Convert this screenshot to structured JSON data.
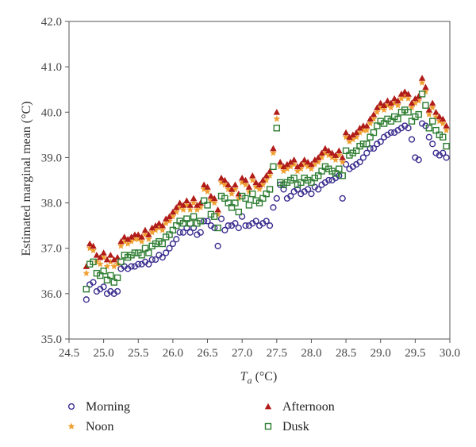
{
  "chart_data": {
    "type": "scatter",
    "title": "",
    "xlabel": "T",
    "xlabel_sub": "a",
    "xlabel_unit": " (°C)",
    "ylabel": "Estimated marginal mean (°C)",
    "xlim": [
      24.5,
      30.0
    ],
    "ylim": [
      35.0,
      42.0
    ],
    "xticks": [
      24.5,
      25.0,
      25.5,
      26.0,
      26.5,
      27.0,
      27.5,
      28.0,
      28.5,
      29.0,
      29.5,
      30.0
    ],
    "yticks": [
      35.0,
      36.0,
      37.0,
      38.0,
      39.0,
      40.0,
      41.0,
      42.0
    ],
    "grid": false,
    "legend_position": "bottom",
    "x_step": 0.05,
    "series": [
      {
        "name": "Morning",
        "marker": "circle",
        "color": "#3b2e8f",
        "x": [
          24.75,
          24.8,
          24.85,
          24.9,
          24.95,
          25.0,
          25.05,
          25.1,
          25.15,
          25.2,
          25.25,
          25.3,
          25.35,
          25.4,
          25.45,
          25.5,
          25.55,
          25.6,
          25.65,
          25.7,
          25.75,
          25.8,
          25.85,
          25.9,
          25.95,
          26.0,
          26.05,
          26.1,
          26.15,
          26.2,
          26.25,
          26.3,
          26.35,
          26.4,
          26.45,
          26.5,
          26.55,
          26.6,
          26.65,
          26.7,
          26.75,
          26.8,
          26.85,
          26.9,
          26.95,
          27.0,
          27.05,
          27.1,
          27.15,
          27.2,
          27.25,
          27.3,
          27.35,
          27.4,
          27.45,
          27.5,
          27.55,
          27.6,
          27.65,
          27.7,
          27.75,
          27.8,
          27.85,
          27.9,
          27.95,
          28.0,
          28.05,
          28.1,
          28.15,
          28.2,
          28.25,
          28.3,
          28.35,
          28.4,
          28.45,
          28.5,
          28.55,
          28.6,
          28.65,
          28.7,
          28.75,
          28.8,
          28.85,
          28.9,
          28.95,
          29.0,
          29.05,
          29.1,
          29.15,
          29.2,
          29.25,
          29.3,
          29.35,
          29.4,
          29.45,
          29.5,
          29.55,
          29.6,
          29.65,
          29.7,
          29.75,
          29.8,
          29.85,
          29.9,
          29.95
        ],
        "values": [
          35.87,
          36.2,
          36.25,
          36.05,
          36.1,
          36.15,
          36.0,
          36.05,
          36.0,
          36.05,
          36.55,
          36.6,
          36.55,
          36.6,
          36.6,
          36.65,
          36.65,
          36.7,
          36.65,
          36.75,
          36.75,
          36.85,
          36.8,
          36.9,
          37.0,
          37.1,
          37.2,
          37.35,
          37.35,
          37.45,
          37.35,
          37.45,
          37.3,
          37.35,
          37.6,
          37.6,
          37.5,
          37.45,
          37.05,
          37.65,
          37.4,
          37.5,
          37.5,
          37.55,
          37.45,
          37.7,
          37.5,
          37.5,
          37.55,
          37.6,
          37.5,
          37.55,
          37.6,
          37.5,
          37.9,
          38.1,
          38.4,
          38.3,
          38.1,
          38.15,
          38.25,
          38.3,
          38.2,
          38.25,
          38.3,
          38.2,
          38.35,
          38.3,
          38.4,
          38.45,
          38.5,
          38.5,
          38.55,
          38.6,
          38.1,
          38.85,
          38.75,
          38.8,
          38.85,
          38.9,
          39.0,
          39.1,
          39.2,
          39.2,
          39.3,
          39.35,
          39.45,
          39.5,
          39.55,
          39.55,
          39.6,
          39.65,
          39.7,
          39.65,
          39.4,
          39.0,
          38.95,
          39.75,
          39.7,
          39.45,
          39.3,
          39.1,
          39.05,
          39.1,
          39.0
        ]
      },
      {
        "name": "Noon",
        "marker": "star",
        "color": "#f0a030",
        "x": [
          24.75,
          24.8,
          24.85,
          24.9,
          24.95,
          25.0,
          25.05,
          25.1,
          25.15,
          25.2,
          25.25,
          25.3,
          25.35,
          25.4,
          25.45,
          25.5,
          25.55,
          25.6,
          25.65,
          25.7,
          25.75,
          25.8,
          25.85,
          25.9,
          25.95,
          26.0,
          26.05,
          26.1,
          26.15,
          26.2,
          26.25,
          26.3,
          26.35,
          26.4,
          26.45,
          26.5,
          26.55,
          26.6,
          26.65,
          26.7,
          26.75,
          26.8,
          26.85,
          26.9,
          26.95,
          27.0,
          27.05,
          27.1,
          27.15,
          27.2,
          27.25,
          27.3,
          27.35,
          27.4,
          27.45,
          27.5,
          27.55,
          27.6,
          27.65,
          27.7,
          27.75,
          27.8,
          27.85,
          27.9,
          27.95,
          28.0,
          28.05,
          28.1,
          28.15,
          28.2,
          28.25,
          28.3,
          28.35,
          28.4,
          28.45,
          28.5,
          28.55,
          28.6,
          28.65,
          28.7,
          28.75,
          28.8,
          28.85,
          28.9,
          28.95,
          29.0,
          29.05,
          29.1,
          29.15,
          29.2,
          29.25,
          29.3,
          29.35,
          29.4,
          29.45,
          29.5,
          29.55,
          29.6,
          29.65,
          29.7,
          29.75,
          29.8,
          29.85,
          29.9,
          29.95
        ],
        "values": [
          36.45,
          37.0,
          36.95,
          36.7,
          36.65,
          36.8,
          36.6,
          36.7,
          36.6,
          36.65,
          37.05,
          37.15,
          37.1,
          37.15,
          37.2,
          37.2,
          37.15,
          37.3,
          37.2,
          37.35,
          37.4,
          37.45,
          37.4,
          37.55,
          37.6,
          37.7,
          37.8,
          37.9,
          37.85,
          37.95,
          37.85,
          38.0,
          37.85,
          37.9,
          38.3,
          38.25,
          38.05,
          38.0,
          37.75,
          38.45,
          38.4,
          38.3,
          38.2,
          38.3,
          38.1,
          38.45,
          38.4,
          38.25,
          38.5,
          38.35,
          38.3,
          38.4,
          38.5,
          38.6,
          39.1,
          39.85,
          38.8,
          38.7,
          38.75,
          38.8,
          38.85,
          38.7,
          38.75,
          38.85,
          38.8,
          38.75,
          38.85,
          38.9,
          39.0,
          39.1,
          39.05,
          39.0,
          38.95,
          39.05,
          38.9,
          39.45,
          39.35,
          39.4,
          39.45,
          39.55,
          39.6,
          39.6,
          39.75,
          39.85,
          40.0,
          40.1,
          40.05,
          40.15,
          40.1,
          40.2,
          40.15,
          40.3,
          40.35,
          40.3,
          40.1,
          40.2,
          40.25,
          40.65,
          40.45,
          39.95,
          40.1,
          39.9,
          39.8,
          39.75,
          39.6
        ]
      },
      {
        "name": "Afternoon",
        "marker": "triangle",
        "color": "#b01c18",
        "x": [
          24.75,
          24.8,
          24.85,
          24.9,
          24.95,
          25.0,
          25.05,
          25.1,
          25.15,
          25.2,
          25.25,
          25.3,
          25.35,
          25.4,
          25.45,
          25.5,
          25.55,
          25.6,
          25.65,
          25.7,
          25.75,
          25.8,
          25.85,
          25.9,
          25.95,
          26.0,
          26.05,
          26.1,
          26.15,
          26.2,
          26.25,
          26.3,
          26.35,
          26.4,
          26.45,
          26.5,
          26.55,
          26.6,
          26.65,
          26.7,
          26.75,
          26.8,
          26.85,
          26.9,
          26.95,
          27.0,
          27.05,
          27.1,
          27.15,
          27.2,
          27.25,
          27.3,
          27.35,
          27.4,
          27.45,
          27.5,
          27.55,
          27.6,
          27.65,
          27.7,
          27.75,
          27.8,
          27.85,
          27.9,
          27.95,
          28.0,
          28.05,
          28.1,
          28.15,
          28.2,
          28.25,
          28.3,
          28.35,
          28.4,
          28.45,
          28.5,
          28.55,
          28.6,
          28.65,
          28.7,
          28.75,
          28.8,
          28.85,
          28.9,
          28.95,
          29.0,
          29.05,
          29.1,
          29.15,
          29.2,
          29.25,
          29.3,
          29.35,
          29.4,
          29.45,
          29.5,
          29.55,
          29.6,
          29.65,
          29.7,
          29.75,
          29.8,
          29.85,
          29.9,
          29.95
        ],
        "values": [
          36.6,
          37.1,
          37.05,
          36.85,
          36.8,
          36.9,
          36.75,
          36.85,
          36.75,
          36.8,
          37.15,
          37.25,
          37.2,
          37.25,
          37.3,
          37.3,
          37.25,
          37.4,
          37.3,
          37.45,
          37.5,
          37.55,
          37.5,
          37.65,
          37.7,
          37.8,
          37.9,
          38.0,
          37.95,
          38.05,
          37.95,
          38.1,
          37.95,
          38.0,
          38.4,
          38.35,
          38.15,
          38.1,
          37.85,
          38.55,
          38.5,
          38.4,
          38.3,
          38.4,
          38.2,
          38.55,
          38.5,
          38.35,
          38.6,
          38.45,
          38.4,
          38.5,
          38.6,
          38.7,
          39.2,
          40.0,
          38.9,
          38.8,
          38.85,
          38.9,
          38.95,
          38.8,
          38.85,
          38.95,
          38.9,
          38.85,
          38.95,
          39.0,
          39.1,
          39.2,
          39.15,
          39.1,
          39.05,
          39.15,
          39.0,
          39.55,
          39.45,
          39.5,
          39.55,
          39.65,
          39.7,
          39.7,
          39.85,
          39.95,
          40.1,
          40.2,
          40.15,
          40.25,
          40.2,
          40.3,
          40.25,
          40.4,
          40.45,
          40.4,
          40.2,
          40.3,
          40.35,
          40.75,
          40.55,
          40.05,
          40.2,
          40.0,
          39.9,
          39.85,
          39.7
        ]
      },
      {
        "name": "Dusk",
        "marker": "square",
        "color": "#2e7d32",
        "x": [
          24.75,
          24.8,
          24.85,
          24.9,
          24.95,
          25.0,
          25.05,
          25.1,
          25.15,
          25.2,
          25.25,
          25.3,
          25.35,
          25.4,
          25.45,
          25.5,
          25.55,
          25.6,
          25.65,
          25.7,
          25.75,
          25.8,
          25.85,
          25.9,
          25.95,
          26.0,
          26.05,
          26.1,
          26.15,
          26.2,
          26.25,
          26.3,
          26.35,
          26.4,
          26.45,
          26.5,
          26.55,
          26.6,
          26.65,
          26.7,
          26.75,
          26.8,
          26.85,
          26.9,
          26.95,
          27.0,
          27.05,
          27.1,
          27.15,
          27.2,
          27.25,
          27.3,
          27.35,
          27.4,
          27.45,
          27.5,
          27.55,
          27.6,
          27.65,
          27.7,
          27.75,
          27.8,
          27.85,
          27.9,
          27.95,
          28.0,
          28.05,
          28.1,
          28.15,
          28.2,
          28.25,
          28.3,
          28.35,
          28.4,
          28.45,
          28.5,
          28.55,
          28.6,
          28.65,
          28.7,
          28.75,
          28.8,
          28.85,
          28.9,
          28.95,
          29.0,
          29.05,
          29.1,
          29.15,
          29.2,
          29.25,
          29.3,
          29.35,
          29.4,
          29.45,
          29.5,
          29.55,
          29.6,
          29.65,
          29.7,
          29.75,
          29.8,
          29.85,
          29.9,
          29.95
        ],
        "values": [
          36.1,
          36.65,
          36.7,
          36.45,
          36.4,
          36.5,
          36.3,
          36.4,
          36.25,
          36.35,
          36.7,
          36.85,
          36.8,
          36.85,
          36.9,
          36.9,
          36.85,
          37.0,
          36.9,
          37.05,
          37.1,
          37.15,
          37.1,
          37.25,
          37.3,
          37.4,
          37.5,
          37.6,
          37.55,
          37.65,
          37.55,
          37.7,
          37.55,
          37.6,
          38.05,
          37.95,
          37.75,
          37.7,
          37.45,
          38.15,
          38.1,
          38.0,
          37.9,
          38.0,
          37.8,
          38.15,
          38.1,
          37.95,
          38.2,
          38.05,
          38.0,
          38.1,
          38.2,
          38.3,
          38.8,
          39.65,
          38.45,
          38.4,
          38.45,
          38.5,
          38.55,
          38.4,
          38.45,
          38.55,
          38.5,
          38.45,
          38.55,
          38.6,
          38.7,
          38.8,
          38.75,
          38.7,
          38.65,
          38.75,
          38.6,
          39.15,
          39.05,
          39.1,
          39.15,
          39.25,
          39.3,
          39.3,
          39.45,
          39.55,
          39.7,
          39.8,
          39.75,
          39.85,
          39.8,
          39.9,
          39.85,
          40.0,
          40.05,
          40.0,
          39.8,
          39.9,
          39.95,
          40.4,
          40.15,
          39.65,
          39.8,
          39.6,
          39.5,
          39.45,
          39.25
        ]
      }
    ]
  }
}
